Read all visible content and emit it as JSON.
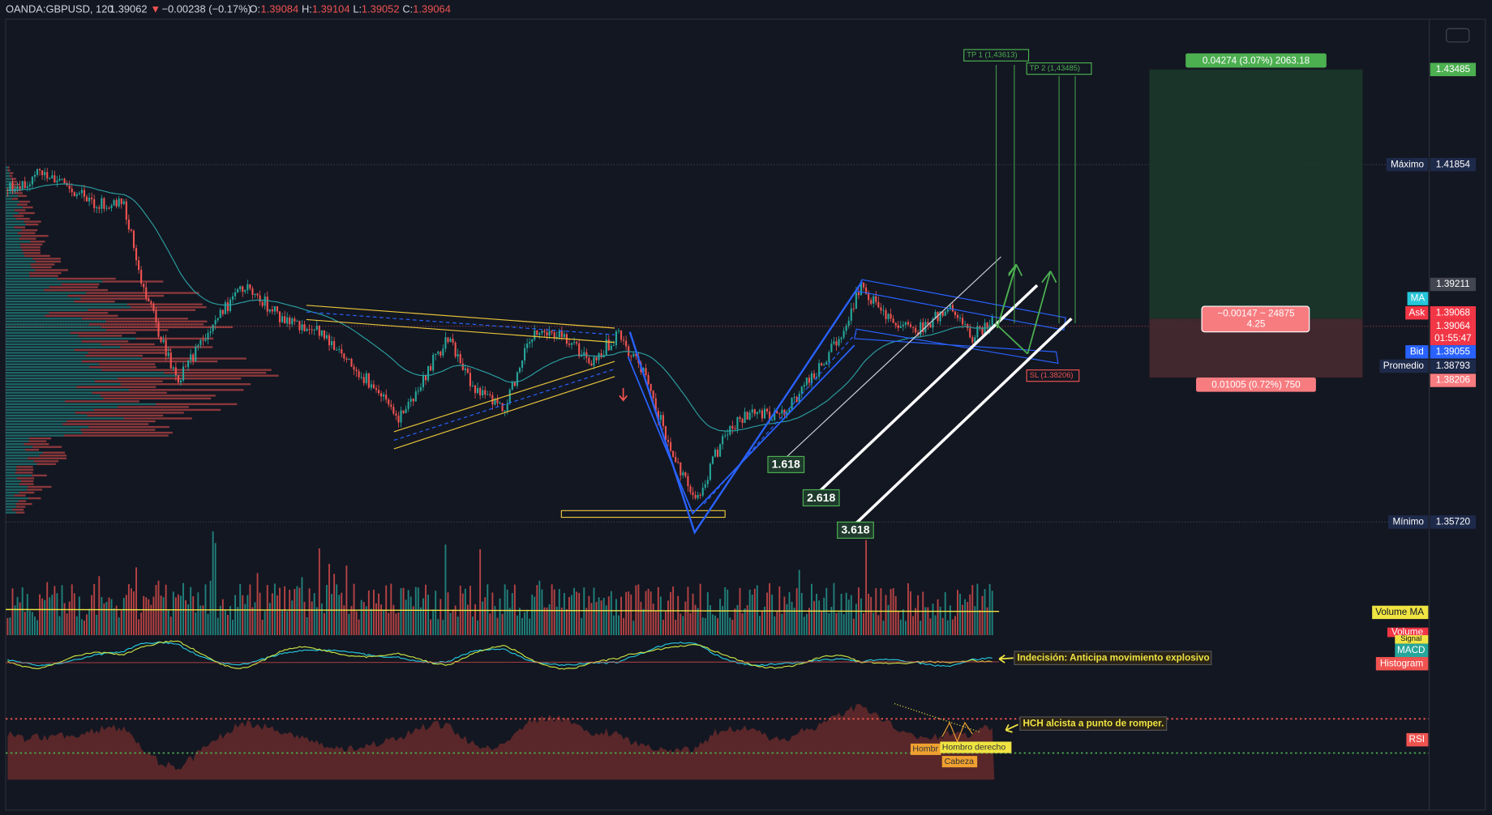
{
  "header": {
    "symbol": "OANDA:GBPUSD, 120",
    "last": "1.39062",
    "arrow": "▼",
    "change": "−0.00238 (−0.17%)",
    "open_label": "O:",
    "open": "1.39084",
    "high_label": "H:",
    "high": "1.39104",
    "low_label": "L:",
    "low": "1.39052",
    "close_label": "C:",
    "close": "1.39064"
  },
  "price_axis": {
    "target": "1.43485",
    "max_label": "Máximo",
    "max": "1.41854",
    "level": "1.39211",
    "ma": "MA",
    "ask_label": "Ask",
    "ask": "1.39068",
    "current": "1.39064",
    "countdown": "01:55:47",
    "bid_label": "Bid",
    "bid": "1.39055",
    "avg_label": "Promedio",
    "avg": "1.38793",
    "stop": "1.38206",
    "min_label": "Mínimo",
    "min": "1.35720"
  },
  "drawings": {
    "tp1": "TP 1   (1,43613)",
    "tp2": "TP 2   (1,43485)",
    "sl": "SL (1.38206)",
    "fib": [
      "1.618",
      "2.618",
      "3.618"
    ],
    "profit": "0.04274 (3.07%) 2063.18",
    "loss": "0.01005 (0.72%) 750",
    "position": [
      "−0.00147 ~ 24875",
      "4.25"
    ]
  },
  "indicators": {
    "volume_ma": "Volume MA",
    "volume": "Volume",
    "signal": "Signal",
    "macd": "MACD",
    "histogram": "Histogram",
    "rsi": "RSI"
  },
  "notes": {
    "macd_note": "Indecisión: Anticipa movimiento explosivo",
    "rsi_note": "HCH alcista a punto de romper.",
    "left_shoulder": "Hombr",
    "right_shoulder": "Hombro derecho",
    "head": "Cabeza"
  }
}
